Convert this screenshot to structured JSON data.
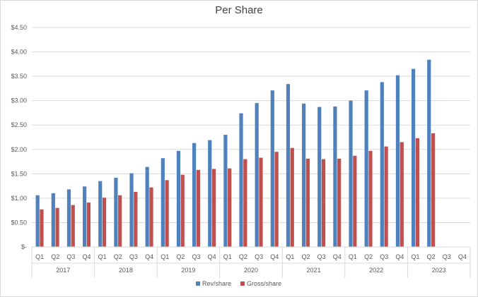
{
  "chart_data": {
    "type": "bar",
    "title": "Per Share",
    "xlabel": "",
    "ylabel": "",
    "ylim": [
      0,
      4.5
    ],
    "ytick_values": [
      0,
      0.5,
      1,
      1.5,
      2,
      2.5,
      3,
      3.5,
      4,
      4.5
    ],
    "ytick_labels": [
      "$-",
      "$0.50",
      "$1.00",
      "$1.50",
      "$2.00",
      "$2.50",
      "$3.00",
      "$3.50",
      "$4.00",
      "$4.50"
    ],
    "grid": true,
    "legend": "bottom",
    "years": [
      "2017",
      "2018",
      "2019",
      "2020",
      "2021",
      "2022",
      "2023"
    ],
    "categories": [
      "Q1",
      "Q2",
      "Q3",
      "Q4",
      "Q1",
      "Q2",
      "Q3",
      "Q4",
      "Q1",
      "Q2",
      "Q3",
      "Q4",
      "Q1",
      "Q2",
      "Q3",
      "Q4",
      "Q1",
      "Q2",
      "Q3",
      "Q4",
      "Q1",
      "Q2",
      "Q3",
      "Q4",
      "Q1",
      "Q2",
      "Q3",
      "Q4"
    ],
    "series": [
      {
        "name": "Rev/share",
        "color": "#4f81bd",
        "values": [
          1.06,
          1.1,
          1.18,
          1.24,
          1.35,
          1.42,
          1.51,
          1.64,
          1.82,
          1.97,
          2.13,
          2.19,
          2.3,
          2.74,
          2.95,
          3.21,
          3.34,
          2.94,
          2.87,
          2.88,
          3.0,
          3.21,
          3.38,
          3.52,
          3.65,
          3.84,
          null,
          null
        ]
      },
      {
        "name": "Gross/share",
        "color": "#c0504d",
        "values": [
          0.77,
          0.8,
          0.86,
          0.91,
          1.01,
          1.06,
          1.13,
          1.22,
          1.37,
          1.48,
          1.58,
          1.6,
          1.61,
          1.8,
          1.83,
          1.95,
          2.03,
          1.81,
          1.8,
          1.81,
          1.87,
          1.97,
          2.06,
          2.15,
          2.23,
          2.33,
          null,
          null
        ]
      }
    ]
  }
}
